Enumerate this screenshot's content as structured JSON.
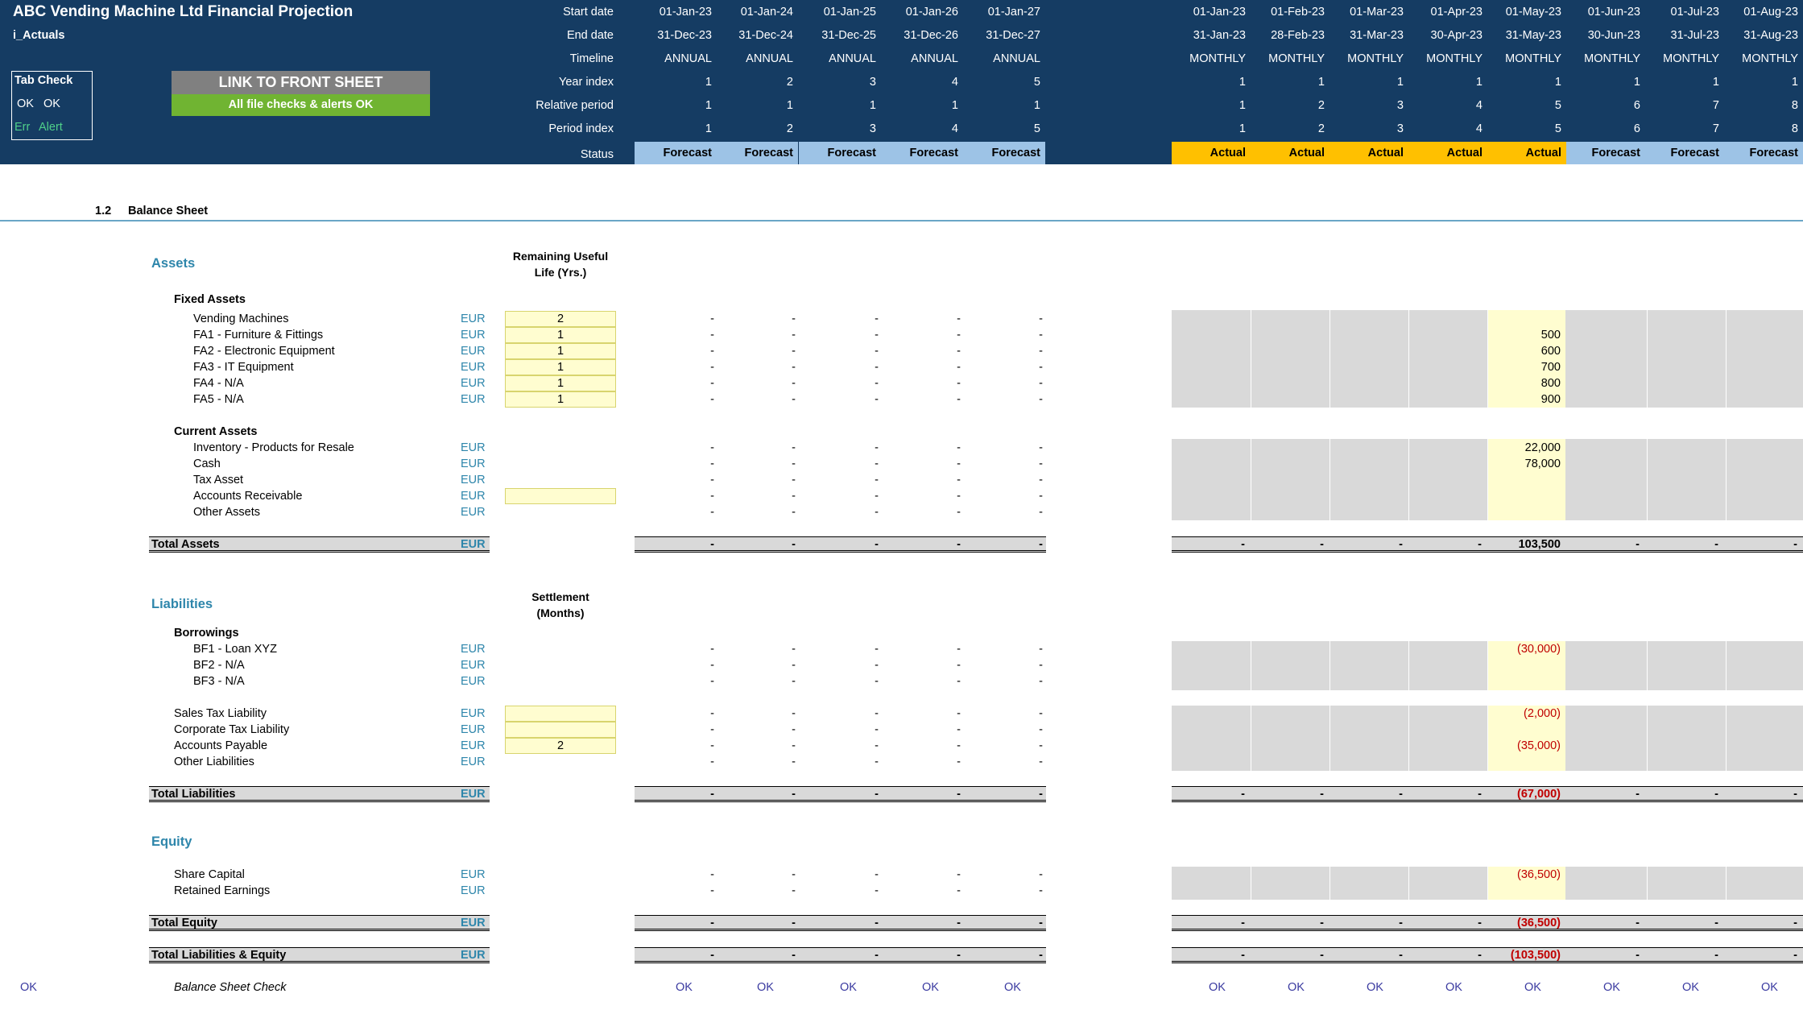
{
  "header": {
    "title": "ABC Vending Machine Ltd Financial Projection",
    "sheet_name": "i_Actuals",
    "row_labels": [
      "Start date",
      "End date",
      "Timeline",
      "Year index",
      "Relative period",
      "Period index",
      "Status"
    ],
    "tab_check": {
      "title": "Tab Check",
      "ok1": "OK",
      "ok2": "OK",
      "err": "Err",
      "alert": "Alert"
    },
    "link_button": "LINK TO FRONT SHEET",
    "checks_status": "All file checks & alerts OK",
    "annual_cols": [
      {
        "start": "01-Jan-23",
        "end": "31-Dec-23",
        "timeline": "ANNUAL",
        "year": "1",
        "rel": "1",
        "period": "1",
        "status": "Forecast"
      },
      {
        "start": "01-Jan-24",
        "end": "31-Dec-24",
        "timeline": "ANNUAL",
        "year": "2",
        "rel": "1",
        "period": "2",
        "status": "Forecast"
      },
      {
        "start": "01-Jan-25",
        "end": "31-Dec-25",
        "timeline": "ANNUAL",
        "year": "3",
        "rel": "1",
        "period": "3",
        "status": "Forecast"
      },
      {
        "start": "01-Jan-26",
        "end": "31-Dec-26",
        "timeline": "ANNUAL",
        "year": "4",
        "rel": "1",
        "period": "4",
        "status": "Forecast"
      },
      {
        "start": "01-Jan-27",
        "end": "31-Dec-27",
        "timeline": "ANNUAL",
        "year": "5",
        "rel": "1",
        "period": "5",
        "status": "Forecast"
      }
    ],
    "monthly_cols": [
      {
        "start": "01-Jan-23",
        "end": "31-Jan-23",
        "timeline": "MONTHLY",
        "year": "1",
        "rel": "1",
        "period": "1",
        "status": "Actual"
      },
      {
        "start": "01-Feb-23",
        "end": "28-Feb-23",
        "timeline": "MONTHLY",
        "year": "1",
        "rel": "2",
        "period": "2",
        "status": "Actual"
      },
      {
        "start": "01-Mar-23",
        "end": "31-Mar-23",
        "timeline": "MONTHLY",
        "year": "1",
        "rel": "3",
        "period": "3",
        "status": "Actual"
      },
      {
        "start": "01-Apr-23",
        "end": "30-Apr-23",
        "timeline": "MONTHLY",
        "year": "1",
        "rel": "4",
        "period": "4",
        "status": "Actual"
      },
      {
        "start": "01-May-23",
        "end": "31-May-23",
        "timeline": "MONTHLY",
        "year": "1",
        "rel": "5",
        "period": "5",
        "status": "Actual"
      },
      {
        "start": "01-Jun-23",
        "end": "30-Jun-23",
        "timeline": "MONTHLY",
        "year": "1",
        "rel": "6",
        "period": "6",
        "status": "Forecast"
      },
      {
        "start": "01-Jul-23",
        "end": "31-Jul-23",
        "timeline": "MONTHLY",
        "year": "1",
        "rel": "7",
        "period": "7",
        "status": "Forecast"
      },
      {
        "start": "01-Aug-23",
        "end": "31-Aug-23",
        "timeline": "MONTHLY",
        "year": "1",
        "rel": "8",
        "period": "8",
        "status": "Forecast"
      }
    ]
  },
  "section": {
    "number": "1.2",
    "title": "Balance Sheet"
  },
  "assets": {
    "title": "Assets",
    "life_header": [
      "Remaining Useful",
      "Life (Yrs.)"
    ],
    "fixed_title": "Fixed Assets",
    "fixed_rows": [
      {
        "label": "Vending Machines",
        "unit": "EUR",
        "input": "2",
        "may": ""
      },
      {
        "label": "FA1 - Furniture & Fittings",
        "unit": "EUR",
        "input": "1",
        "may": "500"
      },
      {
        "label": "FA2 - Electronic Equipment",
        "unit": "EUR",
        "input": "1",
        "may": "600"
      },
      {
        "label": "FA3 - IT Equipment",
        "unit": "EUR",
        "input": "1",
        "may": "700"
      },
      {
        "label": "FA4 - N/A",
        "unit": "EUR",
        "input": "1",
        "may": "800"
      },
      {
        "label": "FA5 - N/A",
        "unit": "EUR",
        "input": "1",
        "may": "900"
      }
    ],
    "current_title": "Current Assets",
    "current_rows": [
      {
        "label": "Inventory - Products for Resale",
        "unit": "EUR",
        "input": null,
        "may": "22,000"
      },
      {
        "label": "Cash",
        "unit": "EUR",
        "input": null,
        "may": "78,000"
      },
      {
        "label": "Tax Asset",
        "unit": "EUR",
        "input": null,
        "may": ""
      },
      {
        "label": "Accounts Receivable",
        "unit": "EUR",
        "input": "",
        "may": ""
      },
      {
        "label": "Other Assets",
        "unit": "EUR",
        "input": null,
        "may": ""
      }
    ],
    "total": {
      "label": "Total Assets",
      "unit": "EUR",
      "may": "103,500"
    }
  },
  "liabilities": {
    "title": "Liabilities",
    "settle_header": [
      "Settlement",
      "(Months)"
    ],
    "borrow_title": "Borrowings",
    "borrow_rows": [
      {
        "label": "BF1 - Loan XYZ",
        "unit": "EUR",
        "may": "(30,000)"
      },
      {
        "label": "BF2 - N/A",
        "unit": "EUR",
        "may": ""
      },
      {
        "label": "BF3 - N/A",
        "unit": "EUR",
        "may": ""
      }
    ],
    "other_rows": [
      {
        "label": "Sales Tax Liability",
        "unit": "EUR",
        "input": "",
        "may": "(2,000)"
      },
      {
        "label": "Corporate Tax Liability",
        "unit": "EUR",
        "input": "",
        "may": ""
      },
      {
        "label": "Accounts Payable",
        "unit": "EUR",
        "input": "2",
        "may": "(35,000)"
      },
      {
        "label": "Other Liabilities",
        "unit": "EUR",
        "input": null,
        "may": ""
      }
    ],
    "total": {
      "label": "Total Liabilities",
      "unit": "EUR",
      "may": "(67,000)"
    }
  },
  "equity": {
    "title": "Equity",
    "rows": [
      {
        "label": "Share Capital",
        "unit": "EUR",
        "may": "(36,500)"
      },
      {
        "label": "Retained Earnings",
        "unit": "EUR",
        "may": ""
      }
    ],
    "total": {
      "label": "Total Equity",
      "unit": "EUR",
      "may": "(36,500)"
    },
    "grand_total": {
      "label": "Total Liabilities & Equity",
      "unit": "EUR",
      "may": "(103,500)"
    }
  },
  "check": {
    "left_status": "OK",
    "label": "Balance Sheet Check",
    "value": "OK"
  },
  "dash": "-",
  "colors": {
    "header_bg": "#153c63",
    "forecast": "#9dc3e6",
    "actual": "#ffc000",
    "input": "#fffdd0",
    "accent": "#2e86ab",
    "negative": "#c00000"
  }
}
